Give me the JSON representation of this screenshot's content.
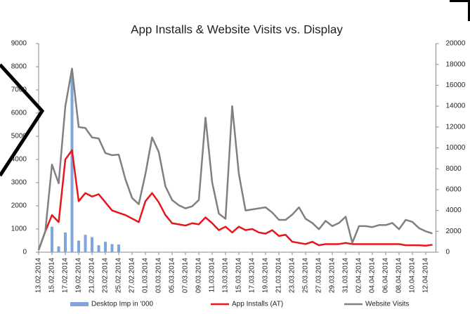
{
  "chart_data": {
    "type": "bar",
    "title": "App Installs & Website Visits vs. Display",
    "categories": [
      "13.02.2014",
      null,
      "15.02.2014",
      null,
      "17.02.2014",
      null,
      "19.02.2014",
      null,
      "21.02.2014",
      null,
      "23.02.2014",
      null,
      "25.02.2014",
      null,
      "27.02.2014",
      null,
      "01.03.2014",
      null,
      "03.03.2014",
      null,
      "05.03.2014",
      null,
      "07.03.2014",
      null,
      "09.03.2014",
      null,
      "11.03.2014",
      null,
      "13.03.2014",
      null,
      "15.03.2014",
      null,
      "17.03.2014",
      null,
      "19.03.2014",
      null,
      "21.03.2014",
      null,
      "23.03.2014",
      null,
      "25.03.2014",
      null,
      "27.03.2014",
      null,
      "29.03.2014",
      null,
      "31.03.2014",
      null,
      "02.04.2014",
      null,
      "04.04.2014",
      null,
      "06.04.2014",
      null,
      "08.04.2014",
      null,
      "10.04.2014",
      null,
      "12.04.2014",
      null
    ],
    "series": [
      {
        "name": "Desktop Imp in '000",
        "type": "bar",
        "color": "#7fa5dc",
        "values": [
          null,
          null,
          1100,
          250,
          850,
          7700,
          500,
          750,
          650,
          300,
          450,
          350,
          330,
          null,
          null,
          null,
          null,
          null,
          null,
          null,
          null,
          null,
          null,
          null,
          null,
          null,
          null,
          null,
          null,
          null,
          null,
          null,
          null,
          null,
          null,
          null,
          null,
          null,
          null,
          null,
          null,
          null,
          null,
          null,
          null,
          null,
          null,
          null,
          null,
          null,
          null,
          null,
          null,
          null,
          null,
          null,
          null,
          null,
          null,
          null
        ]
      },
      {
        "name": "App Installs (AT)",
        "type": "line",
        "color": "#e8151b",
        "values": [
          100,
          900,
          1600,
          1300,
          4000,
          4400,
          2200,
          2550,
          2400,
          2500,
          2150,
          1800,
          1700,
          1600,
          1450,
          1300,
          2200,
          2550,
          2150,
          1600,
          1250,
          1200,
          1150,
          1250,
          1200,
          1500,
          1250,
          950,
          1100,
          850,
          1100,
          950,
          1000,
          850,
          800,
          950,
          700,
          750,
          450,
          400,
          350,
          450,
          300,
          350,
          350,
          350,
          400,
          350,
          350,
          350,
          350,
          350,
          350,
          350,
          350,
          300,
          300,
          300,
          280,
          320
        ]
      },
      {
        "name": "Website Visits",
        "type": "line",
        "color": "#808080",
        "axis": "y2",
        "values": [
          200,
          2000,
          8400,
          6600,
          14000,
          17600,
          12000,
          11900,
          11000,
          10900,
          9500,
          9300,
          9350,
          7000,
          5200,
          4600,
          7500,
          11000,
          9600,
          6300,
          5000,
          4500,
          4200,
          4400,
          5000,
          12900,
          6700,
          3700,
          3200,
          14000,
          7500,
          4000,
          4100,
          4200,
          4300,
          3800,
          3100,
          3100,
          3600,
          4300,
          3200,
          2800,
          2200,
          3000,
          2500,
          2800,
          3400,
          900,
          2500,
          2500,
          2400,
          2600,
          2600,
          2800,
          2200,
          3100,
          2900,
          2300,
          2000,
          1800
        ]
      }
    ],
    "ylim": [
      0,
      9000
    ],
    "yticks": [
      0,
      1000,
      2000,
      3000,
      4000,
      5000,
      6000,
      7000,
      8000,
      9000
    ],
    "y2lim": [
      0,
      20000
    ],
    "y2ticks": [
      0,
      2000,
      4000,
      6000,
      8000,
      10000,
      12000,
      14000,
      16000,
      18000,
      20000
    ],
    "legend": "bottom"
  }
}
